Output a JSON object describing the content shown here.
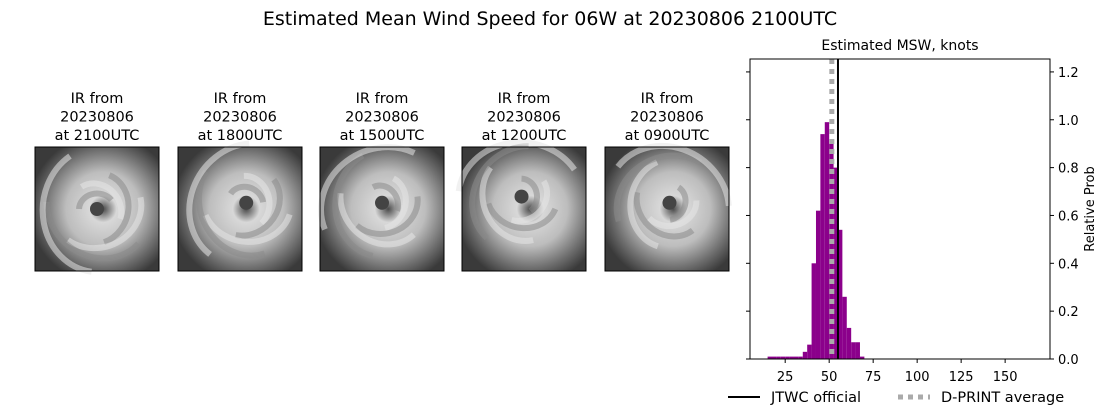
{
  "title": "Estimated Mean Wind Speed for 06W at 20230806 2100UTC",
  "images": [
    {
      "title": [
        "IR from",
        "20230806",
        "at 2100UTC"
      ]
    },
    {
      "title": [
        "IR from",
        "20230806",
        "at 1800UTC"
      ]
    },
    {
      "title": [
        "IR from",
        "20230806",
        "at 1500UTC"
      ]
    },
    {
      "title": [
        "IR from",
        "20230806",
        "at 1200UTC"
      ]
    },
    {
      "title": [
        "IR from",
        "20230806",
        "at 0900UTC"
      ]
    }
  ],
  "chart_data": {
    "type": "histogram",
    "title": "Estimated MSW, knots",
    "y_label": "Relative Prob",
    "y_axis_side": "right",
    "color": "#8b008b",
    "bins": [
      15,
      17.5,
      20,
      22.5,
      25,
      27.5,
      30,
      32.5,
      35,
      37.5,
      40,
      42.5,
      45,
      47.5,
      50,
      52.5,
      55,
      57.5,
      60,
      62.5,
      65,
      67.5,
      70
    ],
    "values": [
      0.01,
      0.01,
      0.01,
      0.01,
      0.01,
      0.01,
      0.01,
      0.01,
      0.03,
      0.06,
      0.4,
      0.62,
      0.94,
      0.99,
      0.9,
      0.8,
      0.54,
      0.26,
      0.13,
      0.07,
      0.07,
      0.01
    ],
    "xlim": [
      5,
      175.5
    ],
    "ylim": [
      0,
      1.254
    ],
    "xticks": [
      25,
      50,
      75,
      100,
      125,
      150
    ],
    "yticks": [
      {
        "value": 0,
        "label": "0.0"
      },
      {
        "value": 0.2,
        "label": "0.2"
      },
      {
        "value": 0.4,
        "label": "0.4"
      },
      {
        "value": 0.6,
        "label": "0.6"
      },
      {
        "value": 0.8,
        "label": "0.8"
      },
      {
        "value": 1.0,
        "label": "1.0"
      },
      {
        "value": 1.2,
        "label": "1.2"
      }
    ],
    "vlines": [
      {
        "name": "JTWC official",
        "value": 55,
        "color": "#000000",
        "style": "solid"
      },
      {
        "name": "D-PRINT average",
        "value": 51.5,
        "color": "#aaaaaa",
        "style": "dotted"
      }
    ]
  }
}
